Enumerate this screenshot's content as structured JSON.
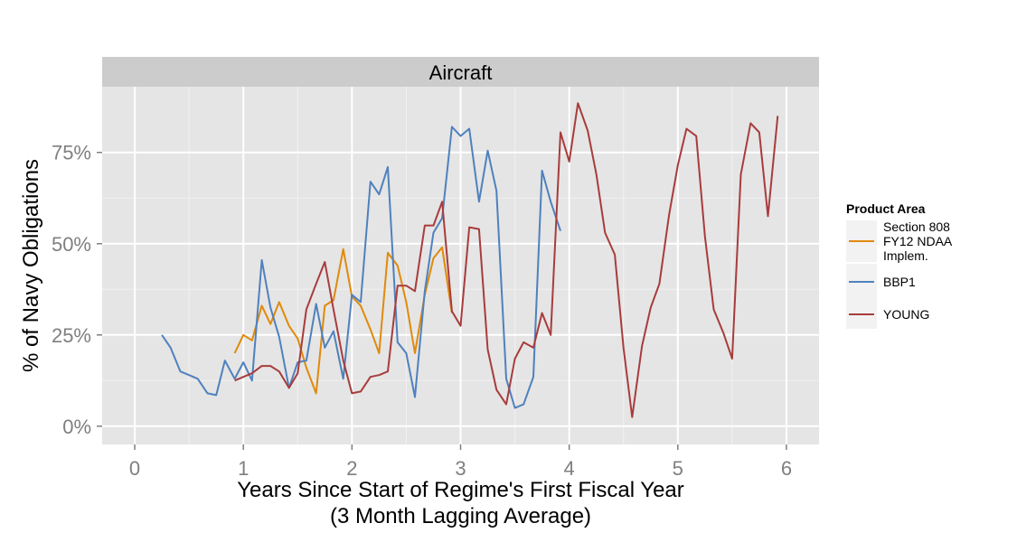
{
  "chart_data": {
    "type": "line",
    "facet_title": "Aircraft",
    "xlabel_line1": "Years Since Start of Regime's First Fiscal Year",
    "xlabel_line2": "(3 Month Lagging Average)",
    "ylabel": "% of Navy Obligations",
    "xlim": [
      -0.3,
      6.3
    ],
    "ylim": [
      -0.05,
      0.93
    ],
    "x_ticks": [
      0,
      1,
      2,
      3,
      4,
      5,
      6
    ],
    "x_tick_labels": [
      "0",
      "1",
      "2",
      "3",
      "4",
      "5",
      "6"
    ],
    "y_ticks": [
      0,
      0.25,
      0.5,
      0.75
    ],
    "y_tick_labels": [
      "0%",
      "25%",
      "50%",
      "75%"
    ],
    "grid": true,
    "legend": {
      "title": "Product Area",
      "position": "right",
      "entries": [
        {
          "label_lines": [
            "Section 808",
            "FY12 NDAA",
            "Implem."
          ],
          "color": "#E08A0B"
        },
        {
          "label_lines": [
            "BBP1"
          ],
          "color": "#4F81BD"
        },
        {
          "label_lines": [
            "YOUNG"
          ],
          "color": "#A83C3C"
        }
      ]
    },
    "series": [
      {
        "key": "section808",
        "color": "#E08A0B",
        "x": [
          0.92,
          1.0,
          1.08,
          1.17,
          1.25,
          1.33,
          1.42,
          1.5,
          1.58,
          1.67,
          1.75,
          1.83,
          1.92,
          2.0,
          2.08,
          2.17,
          2.25,
          2.33,
          2.42,
          2.5,
          2.58,
          2.67,
          2.75,
          2.83,
          2.92
        ],
        "y": [
          0.2,
          0.25,
          0.235,
          0.33,
          0.28,
          0.34,
          0.275,
          0.24,
          0.16,
          0.09,
          0.33,
          0.345,
          0.485,
          0.355,
          0.33,
          0.265,
          0.2,
          0.475,
          0.44,
          0.34,
          0.2,
          0.36,
          0.46,
          0.49,
          0.31
        ]
      },
      {
        "key": "bbp1",
        "color": "#4F81BD",
        "x": [
          0.25,
          0.33,
          0.42,
          0.5,
          0.58,
          0.67,
          0.75,
          0.83,
          0.92,
          1.0,
          1.08,
          1.17,
          1.25,
          1.33,
          1.42,
          1.5,
          1.58,
          1.67,
          1.75,
          1.83,
          1.92,
          2.0,
          2.08,
          2.17,
          2.25,
          2.33,
          2.42,
          2.5,
          2.58,
          2.67,
          2.75,
          2.83,
          2.92,
          3.0,
          3.08,
          3.17,
          3.25,
          3.33,
          3.42,
          3.5,
          3.58,
          3.67,
          3.75,
          3.83,
          3.92
        ],
        "y": [
          0.25,
          0.215,
          0.15,
          0.14,
          0.13,
          0.09,
          0.085,
          0.18,
          0.13,
          0.175,
          0.125,
          0.455,
          0.325,
          0.245,
          0.105,
          0.175,
          0.18,
          0.335,
          0.215,
          0.26,
          0.13,
          0.36,
          0.34,
          0.67,
          0.635,
          0.71,
          0.23,
          0.2,
          0.08,
          0.37,
          0.53,
          0.57,
          0.82,
          0.795,
          0.815,
          0.615,
          0.755,
          0.645,
          0.13,
          0.05,
          0.06,
          0.135,
          0.7,
          0.615,
          0.535
        ]
      },
      {
        "key": "young",
        "color": "#A83C3C",
        "x": [
          0.92,
          1.0,
          1.08,
          1.17,
          1.25,
          1.33,
          1.42,
          1.5,
          1.58,
          1.67,
          1.75,
          1.83,
          1.92,
          2.0,
          2.08,
          2.17,
          2.25,
          2.33,
          2.42,
          2.5,
          2.58,
          2.67,
          2.75,
          2.83,
          2.92,
          3.0,
          3.08,
          3.17,
          3.25,
          3.33,
          3.42,
          3.5,
          3.58,
          3.67,
          3.75,
          3.83,
          3.92,
          4.0,
          4.08,
          4.17,
          4.25,
          4.33,
          4.42,
          4.5,
          4.58,
          4.67,
          4.75,
          4.83,
          4.92,
          5.0,
          5.08,
          5.17,
          5.25,
          5.33,
          5.42,
          5.5,
          5.58,
          5.67,
          5.75,
          5.83,
          5.92
        ],
        "y": [
          0.125,
          0.135,
          0.145,
          0.165,
          0.165,
          0.15,
          0.105,
          0.145,
          0.32,
          0.39,
          0.45,
          0.32,
          0.18,
          0.09,
          0.095,
          0.135,
          0.14,
          0.15,
          0.385,
          0.385,
          0.37,
          0.55,
          0.55,
          0.615,
          0.315,
          0.275,
          0.545,
          0.54,
          0.21,
          0.1,
          0.06,
          0.185,
          0.23,
          0.215,
          0.31,
          0.25,
          0.805,
          0.725,
          0.885,
          0.81,
          0.69,
          0.53,
          0.47,
          0.215,
          0.025,
          0.22,
          0.325,
          0.39,
          0.58,
          0.715,
          0.815,
          0.795,
          0.52,
          0.32,
          0.255,
          0.185,
          0.69,
          0.83,
          0.805,
          0.575,
          0.85
        ]
      }
    ]
  }
}
